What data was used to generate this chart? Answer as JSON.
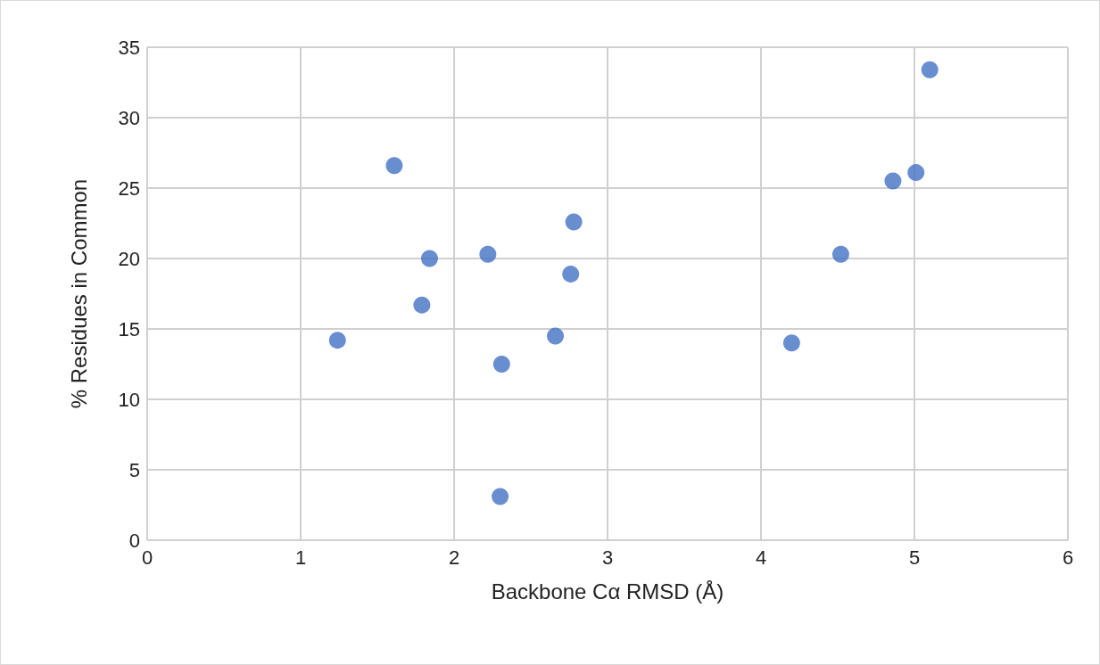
{
  "chart_data": {
    "type": "scatter",
    "xlabel": "Backbone Cα RMSD (Å)",
    "ylabel": "% Residues in Common",
    "x": [
      1.24,
      1.61,
      1.84,
      1.79,
      2.22,
      2.31,
      2.3,
      2.66,
      2.76,
      2.78,
      4.2,
      4.52,
      4.86,
      5.01,
      5.1
    ],
    "values": [
      14.2,
      26.6,
      20.0,
      16.7,
      20.3,
      12.5,
      3.1,
      14.5,
      18.9,
      22.6,
      14.0,
      20.3,
      25.5,
      26.1,
      33.4
    ],
    "color": "#4472c4",
    "marker": "circle",
    "xlim": [
      0,
      6
    ],
    "xticks": [
      0,
      1,
      2,
      3,
      4,
      5,
      6
    ],
    "ylim": [
      0,
      35
    ],
    "yticks": [
      0,
      5,
      10,
      15,
      20,
      25,
      30,
      35
    ],
    "grid": true
  }
}
